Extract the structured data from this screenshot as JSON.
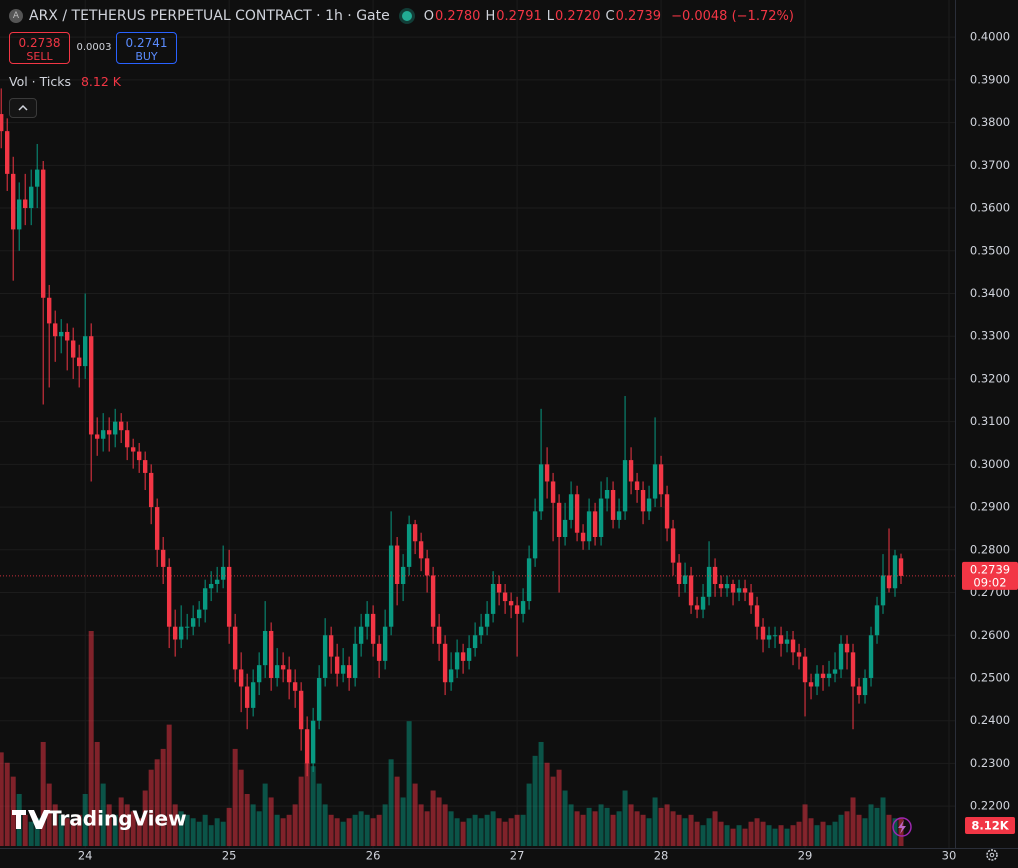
{
  "chart_data": {
    "type": "candlestick",
    "symbol_icon": "A",
    "title": "ARX / TETHERUS PERPETUAL CONTRACT · 1h · Gate",
    "ohlc_legend": [
      {
        "key": "O",
        "value": "0.2780"
      },
      {
        "key": "H",
        "value": "0.2791"
      },
      {
        "key": "L",
        "value": "0.2720"
      },
      {
        "key": "C",
        "value": "0.2739"
      }
    ],
    "change": "−0.0048 (−1.72%)",
    "quote": {
      "sell_price": "0.2738",
      "sell": "SELL",
      "spread": "0.0003",
      "buy_price": "0.2741",
      "buy": "BUY"
    },
    "volume_title": "Vol · Ticks",
    "volume_value": "8.12 K",
    "last_price_label": "0.2739",
    "countdown": "09:02",
    "volume_label": "8.12K",
    "brand": "TradingView",
    "up_color": "#089981",
    "down_color": "#f23645",
    "grid": true,
    "xlim": [
      -0.2,
      159
    ],
    "xticks": [
      {
        "value": 14,
        "label": "24"
      },
      {
        "value": 38,
        "label": "25"
      },
      {
        "value": 62,
        "label": "26"
      },
      {
        "value": 86,
        "label": "27"
      },
      {
        "value": 110,
        "label": "28"
      },
      {
        "value": 134,
        "label": "29"
      },
      {
        "value": 158,
        "label": "30"
      }
    ],
    "ylim": [
      0.2102,
      0.4087
    ],
    "yticks": [
      {
        "value": 0.22,
        "label": "0.2200"
      },
      {
        "value": 0.23,
        "label": "0.2300"
      },
      {
        "value": 0.24,
        "label": "0.2400"
      },
      {
        "value": 0.25,
        "label": "0.2500"
      },
      {
        "value": 0.26,
        "label": "0.2600"
      },
      {
        "value": 0.27,
        "label": "0.2700"
      },
      {
        "value": 0.28,
        "label": "0.2800"
      },
      {
        "value": 0.29,
        "label": "0.2900"
      },
      {
        "value": 0.3,
        "label": "0.3000"
      },
      {
        "value": 0.31,
        "label": "0.3100"
      },
      {
        "value": 0.32,
        "label": "0.3200"
      },
      {
        "value": 0.33,
        "label": "0.3300"
      },
      {
        "value": 0.34,
        "label": "0.3400"
      },
      {
        "value": 0.35,
        "label": "0.3500"
      },
      {
        "value": 0.36,
        "label": "0.3600"
      },
      {
        "value": 0.37,
        "label": "0.3700"
      },
      {
        "value": 0.38,
        "label": "0.3800"
      },
      {
        "value": 0.39,
        "label": "0.3900"
      },
      {
        "value": 0.4,
        "label": "0.4000"
      }
    ],
    "candles": [
      [
        0.382,
        0.388,
        0.374,
        0.378
      ],
      [
        0.378,
        0.381,
        0.364,
        0.368
      ],
      [
        0.368,
        0.372,
        0.343,
        0.355
      ],
      [
        0.355,
        0.366,
        0.35,
        0.362
      ],
      [
        0.362,
        0.368,
        0.356,
        0.36
      ],
      [
        0.36,
        0.369,
        0.356,
        0.365
      ],
      [
        0.365,
        0.375,
        0.36,
        0.369
      ],
      [
        0.369,
        0.371,
        0.314,
        0.339
      ],
      [
        0.339,
        0.342,
        0.318,
        0.333
      ],
      [
        0.333,
        0.336,
        0.324,
        0.33
      ],
      [
        0.33,
        0.334,
        0.326,
        0.331
      ],
      [
        0.331,
        0.333,
        0.322,
        0.329
      ],
      [
        0.329,
        0.332,
        0.32,
        0.325
      ],
      [
        0.325,
        0.328,
        0.318,
        0.323
      ],
      [
        0.323,
        0.34,
        0.32,
        0.33
      ],
      [
        0.33,
        0.333,
        0.296,
        0.307
      ],
      [
        0.307,
        0.311,
        0.302,
        0.306
      ],
      [
        0.306,
        0.312,
        0.303,
        0.308
      ],
      [
        0.308,
        0.311,
        0.303,
        0.307
      ],
      [
        0.307,
        0.313,
        0.304,
        0.31
      ],
      [
        0.31,
        0.312,
        0.305,
        0.308
      ],
      [
        0.308,
        0.31,
        0.301,
        0.304
      ],
      [
        0.304,
        0.306,
        0.299,
        0.303
      ],
      [
        0.303,
        0.305,
        0.298,
        0.301
      ],
      [
        0.301,
        0.303,
        0.294,
        0.298
      ],
      [
        0.298,
        0.3,
        0.286,
        0.29
      ],
      [
        0.29,
        0.292,
        0.276,
        0.28
      ],
      [
        0.28,
        0.283,
        0.272,
        0.276
      ],
      [
        0.276,
        0.278,
        0.257,
        0.262
      ],
      [
        0.262,
        0.266,
        0.255,
        0.259
      ],
      [
        0.259,
        0.267,
        0.257,
        0.262
      ],
      [
        0.262,
        0.265,
        0.259,
        0.262
      ],
      [
        0.262,
        0.267,
        0.26,
        0.264
      ],
      [
        0.264,
        0.268,
        0.262,
        0.266
      ],
      [
        0.266,
        0.273,
        0.263,
        0.271
      ],
      [
        0.271,
        0.275,
        0.268,
        0.272
      ],
      [
        0.272,
        0.276,
        0.27,
        0.273
      ],
      [
        0.273,
        0.281,
        0.271,
        0.276
      ],
      [
        0.276,
        0.28,
        0.258,
        0.262
      ],
      [
        0.262,
        0.265,
        0.249,
        0.252
      ],
      [
        0.252,
        0.256,
        0.242,
        0.248
      ],
      [
        0.248,
        0.251,
        0.238,
        0.243
      ],
      [
        0.243,
        0.252,
        0.241,
        0.249
      ],
      [
        0.249,
        0.256,
        0.246,
        0.253
      ],
      [
        0.253,
        0.268,
        0.25,
        0.261
      ],
      [
        0.261,
        0.263,
        0.247,
        0.25
      ],
      [
        0.25,
        0.257,
        0.248,
        0.253
      ],
      [
        0.253,
        0.256,
        0.249,
        0.252
      ],
      [
        0.252,
        0.255,
        0.245,
        0.249
      ],
      [
        0.249,
        0.252,
        0.243,
        0.247
      ],
      [
        0.247,
        0.249,
        0.233,
        0.238
      ],
      [
        0.238,
        0.241,
        0.227,
        0.23
      ],
      [
        0.23,
        0.243,
        0.228,
        0.24
      ],
      [
        0.24,
        0.253,
        0.238,
        0.25
      ],
      [
        0.25,
        0.264,
        0.248,
        0.26
      ],
      [
        0.26,
        0.262,
        0.251,
        0.255
      ],
      [
        0.255,
        0.258,
        0.248,
        0.251
      ],
      [
        0.251,
        0.257,
        0.249,
        0.253
      ],
      [
        0.253,
        0.255,
        0.247,
        0.25
      ],
      [
        0.25,
        0.262,
        0.248,
        0.258
      ],
      [
        0.258,
        0.265,
        0.255,
        0.262
      ],
      [
        0.262,
        0.268,
        0.259,
        0.265
      ],
      [
        0.265,
        0.267,
        0.255,
        0.258
      ],
      [
        0.258,
        0.26,
        0.25,
        0.254
      ],
      [
        0.254,
        0.266,
        0.252,
        0.262
      ],
      [
        0.262,
        0.289,
        0.26,
        0.281
      ],
      [
        0.281,
        0.283,
        0.267,
        0.272
      ],
      [
        0.272,
        0.279,
        0.268,
        0.276
      ],
      [
        0.276,
        0.288,
        0.274,
        0.286
      ],
      [
        0.286,
        0.287,
        0.279,
        0.282
      ],
      [
        0.282,
        0.284,
        0.275,
        0.278
      ],
      [
        0.278,
        0.28,
        0.27,
        0.274
      ],
      [
        0.274,
        0.276,
        0.258,
        0.262
      ],
      [
        0.262,
        0.265,
        0.254,
        0.258
      ],
      [
        0.258,
        0.26,
        0.246,
        0.249
      ],
      [
        0.249,
        0.256,
        0.247,
        0.252
      ],
      [
        0.252,
        0.259,
        0.25,
        0.256
      ],
      [
        0.256,
        0.258,
        0.251,
        0.254
      ],
      [
        0.254,
        0.26,
        0.252,
        0.257
      ],
      [
        0.257,
        0.263,
        0.255,
        0.26
      ],
      [
        0.26,
        0.265,
        0.258,
        0.262
      ],
      [
        0.262,
        0.268,
        0.26,
        0.265
      ],
      [
        0.265,
        0.275,
        0.263,
        0.272
      ],
      [
        0.272,
        0.274,
        0.267,
        0.27
      ],
      [
        0.27,
        0.272,
        0.265,
        0.268
      ],
      [
        0.268,
        0.27,
        0.264,
        0.267
      ],
      [
        0.267,
        0.269,
        0.255,
        0.265
      ],
      [
        0.265,
        0.271,
        0.263,
        0.268
      ],
      [
        0.268,
        0.281,
        0.266,
        0.278
      ],
      [
        0.278,
        0.292,
        0.276,
        0.289
      ],
      [
        0.289,
        0.313,
        0.287,
        0.3
      ],
      [
        0.3,
        0.304,
        0.292,
        0.296
      ],
      [
        0.296,
        0.298,
        0.282,
        0.291
      ],
      [
        0.291,
        0.293,
        0.27,
        0.283
      ],
      [
        0.283,
        0.291,
        0.281,
        0.287
      ],
      [
        0.287,
        0.296,
        0.285,
        0.293
      ],
      [
        0.293,
        0.295,
        0.282,
        0.284
      ],
      [
        0.284,
        0.286,
        0.28,
        0.282
      ],
      [
        0.282,
        0.292,
        0.28,
        0.289
      ],
      [
        0.289,
        0.291,
        0.281,
        0.283
      ],
      [
        0.283,
        0.296,
        0.281,
        0.292
      ],
      [
        0.292,
        0.297,
        0.289,
        0.294
      ],
      [
        0.294,
        0.296,
        0.285,
        0.287
      ],
      [
        0.287,
        0.292,
        0.285,
        0.289
      ],
      [
        0.289,
        0.316,
        0.287,
        0.301
      ],
      [
        0.301,
        0.304,
        0.293,
        0.296
      ],
      [
        0.296,
        0.298,
        0.291,
        0.294
      ],
      [
        0.294,
        0.296,
        0.286,
        0.289
      ],
      [
        0.289,
        0.295,
        0.287,
        0.292
      ],
      [
        0.292,
        0.311,
        0.29,
        0.3
      ],
      [
        0.3,
        0.302,
        0.29,
        0.293
      ],
      [
        0.293,
        0.295,
        0.282,
        0.285
      ],
      [
        0.285,
        0.287,
        0.274,
        0.277
      ],
      [
        0.277,
        0.279,
        0.269,
        0.272
      ],
      [
        0.272,
        0.277,
        0.27,
        0.274
      ],
      [
        0.274,
        0.276,
        0.265,
        0.267
      ],
      [
        0.267,
        0.269,
        0.264,
        0.266
      ],
      [
        0.266,
        0.272,
        0.264,
        0.269
      ],
      [
        0.269,
        0.282,
        0.267,
        0.276
      ],
      [
        0.276,
        0.278,
        0.269,
        0.272
      ],
      [
        0.272,
        0.274,
        0.269,
        0.271
      ],
      [
        0.271,
        0.274,
        0.269,
        0.272
      ],
      [
        0.272,
        0.273,
        0.267,
        0.27
      ],
      [
        0.27,
        0.273,
        0.268,
        0.271
      ],
      [
        0.271,
        0.273,
        0.268,
        0.27
      ],
      [
        0.27,
        0.272,
        0.265,
        0.267
      ],
      [
        0.267,
        0.269,
        0.259,
        0.262
      ],
      [
        0.262,
        0.264,
        0.256,
        0.259
      ],
      [
        0.259,
        0.262,
        0.257,
        0.26
      ],
      [
        0.26,
        0.262,
        0.257,
        0.26
      ],
      [
        0.26,
        0.262,
        0.255,
        0.258
      ],
      [
        0.258,
        0.261,
        0.256,
        0.259
      ],
      [
        0.259,
        0.261,
        0.253,
        0.256
      ],
      [
        0.256,
        0.258,
        0.252,
        0.255
      ],
      [
        0.255,
        0.257,
        0.241,
        0.249
      ],
      [
        0.249,
        0.251,
        0.245,
        0.248
      ],
      [
        0.248,
        0.253,
        0.246,
        0.251
      ],
      [
        0.251,
        0.253,
        0.247,
        0.25
      ],
      [
        0.25,
        0.254,
        0.248,
        0.251
      ],
      [
        0.251,
        0.256,
        0.249,
        0.252
      ],
      [
        0.252,
        0.26,
        0.25,
        0.258
      ],
      [
        0.258,
        0.26,
        0.252,
        0.256
      ],
      [
        0.256,
        0.258,
        0.238,
        0.248
      ],
      [
        0.248,
        0.25,
        0.244,
        0.246
      ],
      [
        0.246,
        0.252,
        0.244,
        0.25
      ],
      [
        0.25,
        0.262,
        0.248,
        0.26
      ],
      [
        0.26,
        0.269,
        0.258,
        0.267
      ],
      [
        0.267,
        0.279,
        0.265,
        0.274
      ],
      [
        0.274,
        0.285,
        0.27,
        0.271
      ],
      [
        0.271,
        0.28,
        0.269,
        0.2787
      ],
      [
        0.278,
        0.2791,
        0.272,
        0.2739
      ]
    ],
    "volumes": [
      27000,
      24000,
      20000,
      15000,
      9000,
      7000,
      8000,
      30000,
      18000,
      12000,
      9000,
      8000,
      7000,
      9000,
      15000,
      62000,
      30000,
      18000,
      12000,
      9000,
      14000,
      12000,
      10000,
      8000,
      16000,
      22000,
      25000,
      28000,
      35000,
      12000,
      10000,
      9000,
      8000,
      7000,
      9000,
      6000,
      8000,
      7000,
      11000,
      28000,
      22000,
      15000,
      12000,
      10000,
      18000,
      14000,
      9000,
      8000,
      9000,
      12000,
      20000,
      24000,
      23000,
      18000,
      12000,
      9000,
      8000,
      7000,
      8000,
      9000,
      10000,
      9000,
      8000,
      9000,
      12000,
      25000,
      20000,
      14000,
      36000,
      18000,
      12000,
      10000,
      16000,
      14000,
      12000,
      10000,
      8000,
      7000,
      8000,
      9000,
      8000,
      9000,
      10000,
      8000,
      7000,
      8000,
      9000,
      9000,
      18000,
      26000,
      30000,
      24000,
      20000,
      22000,
      16000,
      12000,
      10000,
      9000,
      11000,
      10000,
      12000,
      11000,
      9000,
      10000,
      16000,
      12000,
      10000,
      9000,
      8000,
      14000,
      11000,
      12000,
      10000,
      9000,
      8000,
      9000,
      7000,
      6000,
      8000,
      10000,
      7000,
      6000,
      5000,
      6000,
      5000,
      7000,
      8000,
      7000,
      6000,
      5000,
      6000,
      5000,
      6000,
      7000,
      12000,
      8000,
      6000,
      7000,
      6000,
      7000,
      9000,
      10000,
      14000,
      9000,
      8000,
      12000,
      11000,
      14000,
      9000,
      8000,
      8120
    ]
  }
}
